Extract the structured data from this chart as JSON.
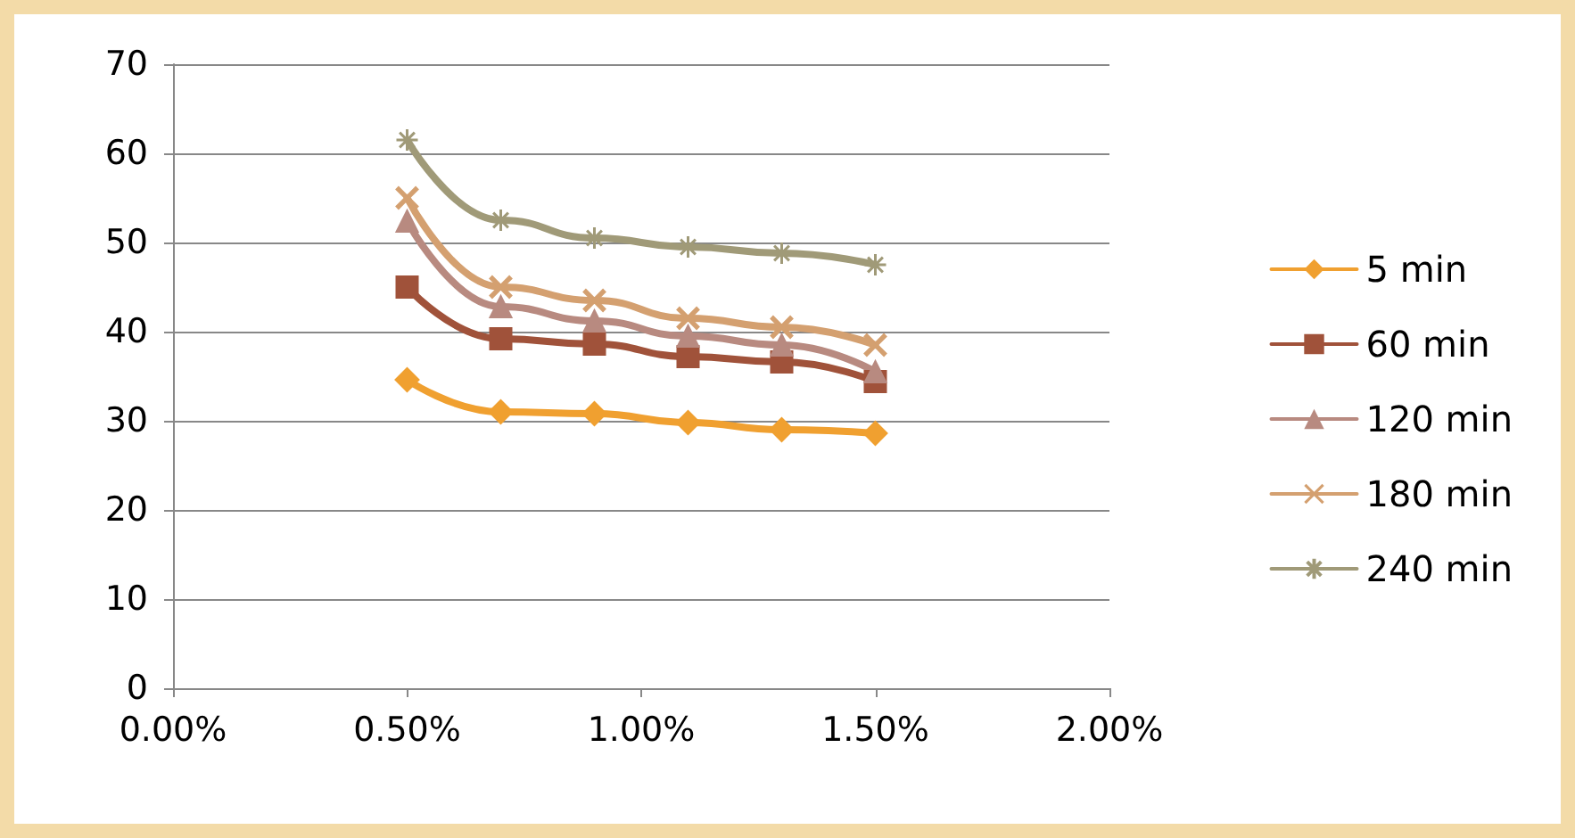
{
  "chart_data": {
    "type": "line",
    "x": [
      0.5,
      0.7,
      0.9,
      1.1,
      1.3,
      1.5
    ],
    "xlim": [
      0,
      2
    ],
    "xticks": [
      {
        "value": 0,
        "label": "0.00%"
      },
      {
        "value": 0.5,
        "label": "0.50%"
      },
      {
        "value": 1,
        "label": "1.00%"
      },
      {
        "value": 1.5,
        "label": "1.50%"
      },
      {
        "value": 2,
        "label": "2.00%"
      }
    ],
    "ylim": [
      0,
      70
    ],
    "yticks": [
      0,
      10,
      20,
      30,
      40,
      50,
      60,
      70
    ],
    "grid": "y",
    "legend": "right",
    "series": [
      {
        "name": "5 min",
        "color": "#f0a030",
        "marker": "diamond",
        "values": [
          34.6,
          31,
          30.8,
          29.8,
          29,
          28.6
        ]
      },
      {
        "name": "60 min",
        "color": "#a0523a",
        "marker": "square",
        "values": [
          45,
          39.2,
          38.6,
          37.2,
          36.6,
          34.4
        ]
      },
      {
        "name": "120 min",
        "color": "#b88a80",
        "marker": "triangle",
        "values": [
          52.4,
          42.8,
          41.2,
          39.5,
          38.5,
          35.5
        ]
      },
      {
        "name": "180 min",
        "color": "#d4a070",
        "marker": "cross",
        "values": [
          55,
          45,
          43.5,
          41.5,
          40.5,
          38.5
        ]
      },
      {
        "name": "240 min",
        "color": "#a09a78",
        "marker": "star",
        "values": [
          61.5,
          52.5,
          50.5,
          49.5,
          48.8,
          47.5
        ]
      }
    ]
  }
}
